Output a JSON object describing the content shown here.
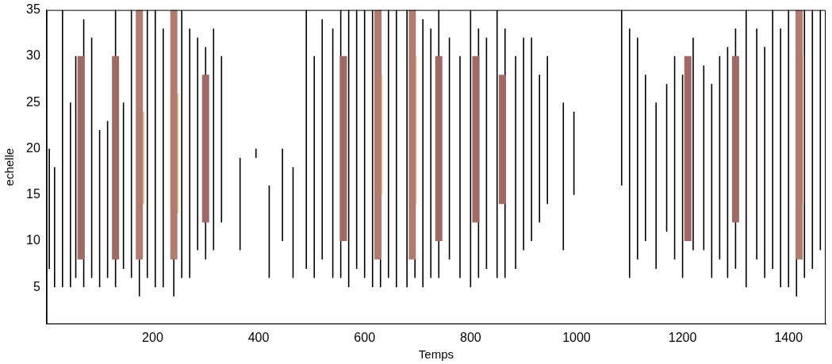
{
  "chart_data": {
    "type": "line",
    "x_label": "Temps",
    "y_label": "echelle",
    "xlim": [
      0,
      1470
    ],
    "xticks": [
      200,
      400,
      600,
      800,
      1000,
      1200,
      1400
    ],
    "ylim": [
      1,
      35
    ],
    "yticks": [
      5,
      10,
      15,
      20,
      25,
      30,
      35
    ],
    "grid": false,
    "color": "#000000",
    "series": [
      {
        "type": "band",
        "color": "#a06a64",
        "x": [
          65,
          65
        ],
        "y": [
          8,
          30
        ]
      },
      {
        "type": "band",
        "color": "#a06a64",
        "x": [
          130,
          130
        ],
        "y": [
          8,
          30
        ]
      },
      {
        "type": "band",
        "color": "#b07c70",
        "x": [
          175,
          175
        ],
        "y": [
          8,
          35
        ]
      },
      {
        "type": "band",
        "color": "#e6c89a",
        "x": [
          178,
          178
        ],
        "y": [
          14,
          24
        ]
      },
      {
        "type": "band",
        "color": "#b07c70",
        "x": [
          240,
          240
        ],
        "y": [
          8,
          35
        ]
      },
      {
        "type": "band",
        "color": "#e6c89a",
        "x": [
          242,
          242
        ],
        "y": [
          13,
          26
        ]
      },
      {
        "type": "band",
        "color": "#a06a64",
        "x": [
          300,
          300
        ],
        "y": [
          12,
          28
        ]
      },
      {
        "type": "band",
        "color": "#a06a64",
        "x": [
          560,
          560
        ],
        "y": [
          10,
          30
        ]
      },
      {
        "type": "band",
        "color": "#b07c70",
        "x": [
          625,
          625
        ],
        "y": [
          8,
          35
        ]
      },
      {
        "type": "band",
        "color": "#e6c89a",
        "x": [
          627,
          627
        ],
        "y": [
          15,
          28
        ]
      },
      {
        "type": "band",
        "color": "#b07c70",
        "x": [
          690,
          690
        ],
        "y": [
          8,
          35
        ]
      },
      {
        "type": "band",
        "color": "#efd8aa",
        "x": [
          692,
          692
        ],
        "y": [
          14,
          30
        ]
      },
      {
        "type": "band",
        "color": "#a06a64",
        "x": [
          740,
          740
        ],
        "y": [
          10,
          30
        ]
      },
      {
        "type": "band",
        "color": "#a06a64",
        "x": [
          810,
          810
        ],
        "y": [
          12,
          30
        ]
      },
      {
        "type": "band",
        "color": "#a06a64",
        "x": [
          860,
          860
        ],
        "y": [
          14,
          28
        ]
      },
      {
        "type": "band",
        "color": "#a06a64",
        "x": [
          1210,
          1210
        ],
        "y": [
          10,
          30
        ]
      },
      {
        "type": "band",
        "color": "#a06a64",
        "x": [
          1300,
          1300
        ],
        "y": [
          12,
          30
        ]
      },
      {
        "type": "band",
        "color": "#b07c70",
        "x": [
          1420,
          1420
        ],
        "y": [
          8,
          35
        ]
      },
      {
        "type": "band",
        "color": "#efd8aa",
        "x": [
          1422,
          1422
        ],
        "y": [
          14,
          30
        ]
      },
      {
        "type": "line",
        "x": [
          5,
          5
        ],
        "y": [
          7,
          20
        ]
      },
      {
        "type": "line",
        "x": [
          15,
          15
        ],
        "y": [
          5,
          18
        ]
      },
      {
        "type": "line",
        "x": [
          30,
          30
        ],
        "y": [
          5,
          35
        ]
      },
      {
        "type": "line",
        "x": [
          45,
          45
        ],
        "y": [
          5,
          25
        ]
      },
      {
        "type": "line",
        "x": [
          55,
          55
        ],
        "y": [
          6,
          30
        ]
      },
      {
        "type": "line",
        "x": [
          70,
          70
        ],
        "y": [
          5,
          34
        ]
      },
      {
        "type": "line",
        "x": [
          85,
          85
        ],
        "y": [
          6,
          32
        ]
      },
      {
        "type": "line",
        "x": [
          100,
          100
        ],
        "y": [
          5,
          22
        ]
      },
      {
        "type": "line",
        "x": [
          115,
          115
        ],
        "y": [
          6,
          23
        ]
      },
      {
        "type": "line",
        "x": [
          130,
          130
        ],
        "y": [
          5,
          35
        ]
      },
      {
        "type": "line",
        "x": [
          145,
          145
        ],
        "y": [
          7,
          25
        ]
      },
      {
        "type": "line",
        "x": [
          160,
          160
        ],
        "y": [
          6,
          35
        ]
      },
      {
        "type": "line",
        "x": [
          175,
          175
        ],
        "y": [
          4,
          35
        ]
      },
      {
        "type": "line",
        "x": [
          190,
          190
        ],
        "y": [
          6,
          35
        ]
      },
      {
        "type": "line",
        "x": [
          205,
          205
        ],
        "y": [
          5,
          35
        ]
      },
      {
        "type": "line",
        "x": [
          220,
          220
        ],
        "y": [
          5,
          33
        ]
      },
      {
        "type": "line",
        "x": [
          240,
          240
        ],
        "y": [
          4,
          35
        ]
      },
      {
        "type": "line",
        "x": [
          255,
          255
        ],
        "y": [
          6,
          35
        ]
      },
      {
        "type": "line",
        "x": [
          270,
          270
        ],
        "y": [
          6,
          33
        ]
      },
      {
        "type": "line",
        "x": [
          285,
          285
        ],
        "y": [
          9,
          32
        ]
      },
      {
        "type": "line",
        "x": [
          300,
          300
        ],
        "y": [
          8,
          31
        ]
      },
      {
        "type": "line",
        "x": [
          315,
          315
        ],
        "y": [
          9,
          33
        ]
      },
      {
        "type": "line",
        "x": [
          330,
          330
        ],
        "y": [
          12,
          30
        ]
      },
      {
        "type": "line",
        "x": [
          365,
          365
        ],
        "y": [
          9,
          19
        ]
      },
      {
        "type": "line",
        "x": [
          395,
          395
        ],
        "y": [
          19,
          20
        ]
      },
      {
        "type": "line",
        "x": [
          420,
          420
        ],
        "y": [
          6,
          16
        ]
      },
      {
        "type": "line",
        "x": [
          445,
          445
        ],
        "y": [
          10,
          20
        ]
      },
      {
        "type": "line",
        "x": [
          465,
          465
        ],
        "y": [
          6,
          18
        ]
      },
      {
        "type": "line",
        "x": [
          490,
          490
        ],
        "y": [
          7,
          35
        ]
      },
      {
        "type": "line",
        "x": [
          505,
          505
        ],
        "y": [
          6,
          30
        ]
      },
      {
        "type": "line",
        "x": [
          520,
          520
        ],
        "y": [
          8,
          34
        ]
      },
      {
        "type": "line",
        "x": [
          540,
          540
        ],
        "y": [
          6,
          33
        ]
      },
      {
        "type": "line",
        "x": [
          555,
          555
        ],
        "y": [
          6,
          35
        ]
      },
      {
        "type": "line",
        "x": [
          570,
          570
        ],
        "y": [
          5,
          35
        ]
      },
      {
        "type": "line",
        "x": [
          585,
          585
        ],
        "y": [
          7,
          35
        ]
      },
      {
        "type": "line",
        "x": [
          600,
          600
        ],
        "y": [
          6,
          35
        ]
      },
      {
        "type": "line",
        "x": [
          615,
          615
        ],
        "y": [
          5,
          35
        ]
      },
      {
        "type": "line",
        "x": [
          630,
          630
        ],
        "y": [
          5,
          35
        ]
      },
      {
        "type": "line",
        "x": [
          645,
          645
        ],
        "y": [
          6,
          35
        ]
      },
      {
        "type": "line",
        "x": [
          660,
          660
        ],
        "y": [
          5,
          35
        ]
      },
      {
        "type": "line",
        "x": [
          680,
          680
        ],
        "y": [
          5,
          35
        ]
      },
      {
        "type": "line",
        "x": [
          695,
          695
        ],
        "y": [
          6,
          35
        ]
      },
      {
        "type": "line",
        "x": [
          710,
          710
        ],
        "y": [
          5,
          34
        ]
      },
      {
        "type": "line",
        "x": [
          725,
          725
        ],
        "y": [
          6,
          33
        ]
      },
      {
        "type": "line",
        "x": [
          740,
          740
        ],
        "y": [
          6,
          35
        ]
      },
      {
        "type": "line",
        "x": [
          760,
          760
        ],
        "y": [
          8,
          32
        ]
      },
      {
        "type": "line",
        "x": [
          780,
          780
        ],
        "y": [
          6,
          30
        ]
      },
      {
        "type": "line",
        "x": [
          800,
          800
        ],
        "y": [
          5,
          35
        ]
      },
      {
        "type": "line",
        "x": [
          815,
          815
        ],
        "y": [
          6,
          33
        ]
      },
      {
        "type": "line",
        "x": [
          830,
          830
        ],
        "y": [
          7,
          32
        ]
      },
      {
        "type": "line",
        "x": [
          850,
          850
        ],
        "y": [
          6,
          35
        ]
      },
      {
        "type": "line",
        "x": [
          865,
          865
        ],
        "y": [
          6,
          33
        ]
      },
      {
        "type": "line",
        "x": [
          885,
          885
        ],
        "y": [
          7,
          30
        ]
      },
      {
        "type": "line",
        "x": [
          900,
          900
        ],
        "y": [
          9,
          32
        ]
      },
      {
        "type": "line",
        "x": [
          915,
          915
        ],
        "y": [
          10,
          32
        ]
      },
      {
        "type": "line",
        "x": [
          930,
          930
        ],
        "y": [
          12,
          28
        ]
      },
      {
        "type": "line",
        "x": [
          945,
          945
        ],
        "y": [
          14,
          30
        ]
      },
      {
        "type": "line",
        "x": [
          975,
          975
        ],
        "y": [
          9,
          25
        ]
      },
      {
        "type": "line",
        "x": [
          995,
          995
        ],
        "y": [
          15,
          24
        ]
      },
      {
        "type": "line",
        "x": [
          1085,
          1085
        ],
        "y": [
          16,
          35
        ]
      },
      {
        "type": "line",
        "x": [
          1100,
          1100
        ],
        "y": [
          6,
          33
        ]
      },
      {
        "type": "line",
        "x": [
          1115,
          1115
        ],
        "y": [
          8,
          32
        ]
      },
      {
        "type": "line",
        "x": [
          1130,
          1130
        ],
        "y": [
          10,
          28
        ]
      },
      {
        "type": "line",
        "x": [
          1150,
          1150
        ],
        "y": [
          7,
          25
        ]
      },
      {
        "type": "line",
        "x": [
          1170,
          1170
        ],
        "y": [
          11,
          27
        ]
      },
      {
        "type": "line",
        "x": [
          1185,
          1185
        ],
        "y": [
          8,
          30
        ]
      },
      {
        "type": "line",
        "x": [
          1200,
          1200
        ],
        "y": [
          6,
          28
        ]
      },
      {
        "type": "line",
        "x": [
          1220,
          1220
        ],
        "y": [
          9,
          32
        ]
      },
      {
        "type": "line",
        "x": [
          1240,
          1240
        ],
        "y": [
          9,
          29
        ]
      },
      {
        "type": "line",
        "x": [
          1255,
          1255
        ],
        "y": [
          6,
          27
        ]
      },
      {
        "type": "line",
        "x": [
          1270,
          1270
        ],
        "y": [
          8,
          30
        ]
      },
      {
        "type": "line",
        "x": [
          1285,
          1285
        ],
        "y": [
          6,
          31
        ]
      },
      {
        "type": "line",
        "x": [
          1300,
          1300
        ],
        "y": [
          7,
          33
        ]
      },
      {
        "type": "line",
        "x": [
          1320,
          1320
        ],
        "y": [
          5,
          35
        ]
      },
      {
        "type": "line",
        "x": [
          1340,
          1340
        ],
        "y": [
          8,
          33
        ]
      },
      {
        "type": "line",
        "x": [
          1355,
          1355
        ],
        "y": [
          6,
          31
        ]
      },
      {
        "type": "line",
        "x": [
          1370,
          1370
        ],
        "y": [
          7,
          35
        ]
      },
      {
        "type": "line",
        "x": [
          1385,
          1385
        ],
        "y": [
          5,
          33
        ]
      },
      {
        "type": "line",
        "x": [
          1400,
          1400
        ],
        "y": [
          5,
          35
        ]
      },
      {
        "type": "line",
        "x": [
          1415,
          1415
        ],
        "y": [
          4,
          35
        ]
      },
      {
        "type": "line",
        "x": [
          1430,
          1430
        ],
        "y": [
          6,
          35
        ]
      },
      {
        "type": "line",
        "x": [
          1445,
          1445
        ],
        "y": [
          7,
          35
        ]
      },
      {
        "type": "line",
        "x": [
          1460,
          1460
        ],
        "y": [
          9,
          35
        ]
      }
    ]
  }
}
